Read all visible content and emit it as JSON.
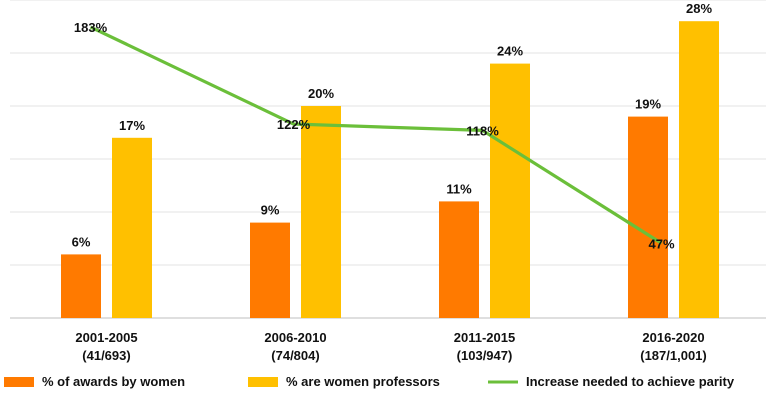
{
  "chart_data": {
    "type": "bar",
    "title": "",
    "xlabel": "",
    "ylabel": "",
    "grid": true,
    "legend_position": "bottom",
    "categories": [
      {
        "label": "2001-2005",
        "sub": "(41/693)"
      },
      {
        "label": "2006-2010",
        "sub": "(74/804)"
      },
      {
        "label": "2011-2015",
        "sub": "(103/947)"
      },
      {
        "label": "2016-2020",
        "sub": "(187/1,001)"
      }
    ],
    "bar_ylim": [
      0,
      30
    ],
    "line_ylim": [
      0,
      200
    ],
    "series": [
      {
        "name": "% of awards by women",
        "kind": "bar",
        "color": "#FF7A00",
        "values": [
          6,
          9,
          11,
          19
        ],
        "labels": [
          "6%",
          "9%",
          "11%",
          "19%"
        ]
      },
      {
        "name": "% are women professors",
        "kind": "bar",
        "color": "#FFC000",
        "values": [
          17,
          20,
          24,
          28
        ],
        "labels": [
          "17%",
          "20%",
          "24%",
          "28%"
        ]
      },
      {
        "name": "Increase needed to achieve parity",
        "kind": "line",
        "color": "#6BBF3A",
        "values": [
          183,
          122,
          118,
          47
        ],
        "labels": [
          "183%",
          "122%",
          "118%",
          "47%"
        ]
      }
    ]
  }
}
